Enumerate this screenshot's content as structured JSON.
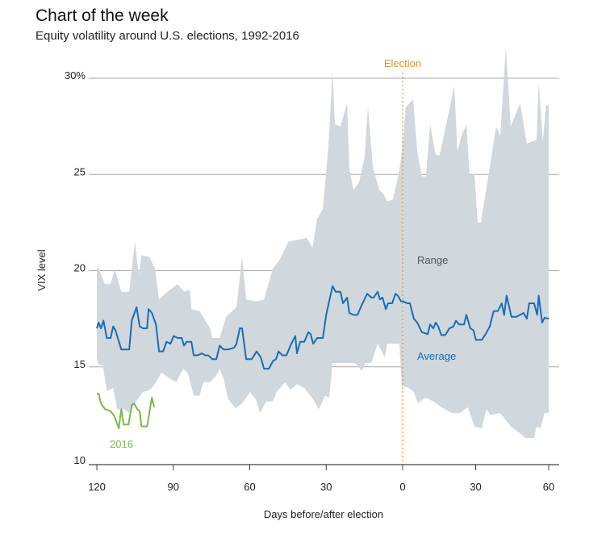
{
  "chart_data": {
    "type": "area",
    "title": "Chart of the week",
    "subtitle": "Equity volatility around U.S. elections, 1992-2016",
    "xlabel": "Days before/after election",
    "ylabel": "VIX level",
    "xlim": [
      -120,
      60
    ],
    "ylim": [
      10,
      30
    ],
    "grid": true,
    "x_ticks": [
      -120,
      -90,
      -60,
      -30,
      0,
      30,
      60
    ],
    "x_tick_labels": [
      "120",
      "90",
      "60",
      "30",
      "0",
      "30",
      "60"
    ],
    "y_ticks": [
      30,
      25,
      20,
      15,
      10
    ],
    "y_tick_labels": [
      "30%",
      "25",
      "20",
      "15",
      "10"
    ],
    "annotations": {
      "election": "Election",
      "range": "Range",
      "average": "Average",
      "y2016": "2016"
    },
    "colors": {
      "range": "#d0d7dd",
      "average": "#1a6db4",
      "y2016": "#7cb84a",
      "election": "#e8922c",
      "grid": "#aaaaaa"
    },
    "series": [
      {
        "name": "Range upper",
        "points": [
          [
            -120,
            20.2
          ],
          [
            -119.3,
            20.1
          ],
          [
            -116.8,
            19.3
          ],
          [
            -114.6,
            19.3
          ],
          [
            -113,
            20.1
          ],
          [
            -110.4,
            18.9
          ],
          [
            -107.3,
            18.9
          ],
          [
            -105.1,
            21.5
          ],
          [
            -103.5,
            19.8
          ],
          [
            -102.5,
            20.8
          ],
          [
            -99.4,
            20.7
          ],
          [
            -97.2,
            20.1
          ],
          [
            -95.6,
            18.5
          ],
          [
            -92.4,
            18.9
          ],
          [
            -88.3,
            19.3
          ],
          [
            -85.8,
            18.9
          ],
          [
            -83.5,
            19.0
          ],
          [
            -82.9,
            18.0
          ],
          [
            -79.7,
            17.9
          ],
          [
            -75.6,
            17.0
          ],
          [
            -74.7,
            16.5
          ],
          [
            -71.8,
            16.5
          ],
          [
            -69.3,
            17.6
          ],
          [
            -65.2,
            18.1
          ],
          [
            -63,
            20.7
          ],
          [
            -61.4,
            18.5
          ],
          [
            -57.6,
            18.4
          ],
          [
            -54.4,
            18.5
          ],
          [
            -52.5,
            19.4
          ],
          [
            -50.9,
            20.1
          ],
          [
            -48.1,
            20.6
          ],
          [
            -44.9,
            21.5
          ],
          [
            -37.7,
            21.7
          ],
          [
            -35.4,
            21.2
          ],
          [
            -33.5,
            22.7
          ],
          [
            -31.3,
            23.2
          ],
          [
            -29.1,
            26.5
          ],
          [
            -27.5,
            30.4
          ],
          [
            -26.6,
            27.6
          ],
          [
            -24.4,
            27.5
          ],
          [
            -21.8,
            28.7
          ],
          [
            -20.9,
            25.3
          ],
          [
            -19.3,
            24.2
          ],
          [
            -17.1,
            24.6
          ],
          [
            -14.9,
            25.9
          ],
          [
            -13.6,
            28.5
          ],
          [
            -11.7,
            25.4
          ],
          [
            -9.2,
            24.2
          ],
          [
            -7.6,
            24.0
          ],
          [
            -6,
            23.6
          ],
          [
            -3.8,
            23.7
          ],
          [
            -1.3,
            25.2
          ],
          [
            0,
            26.5
          ],
          [
            1.3,
            28.5
          ],
          [
            4.3,
            28.9
          ],
          [
            6,
            26.2
          ],
          [
            7.9,
            24.9
          ],
          [
            9.6,
            24.9
          ],
          [
            11.3,
            27.6
          ],
          [
            13.6,
            26.0
          ],
          [
            15.2,
            26.0
          ],
          [
            17.9,
            27.6
          ],
          [
            21.2,
            29.6
          ],
          [
            22.5,
            26.2
          ],
          [
            24.2,
            27.0
          ],
          [
            26.2,
            27.6
          ],
          [
            27.5,
            25.0
          ],
          [
            29.5,
            25.0
          ],
          [
            30.8,
            22.5
          ],
          [
            32.1,
            22.5
          ],
          [
            36.1,
            25.6
          ],
          [
            38.4,
            27.5
          ],
          [
            40.1,
            27.0
          ],
          [
            42.4,
            31.6
          ],
          [
            44.4,
            27.5
          ],
          [
            48.3,
            28.7
          ],
          [
            51,
            26.6
          ],
          [
            55,
            26.8
          ],
          [
            55.9,
            29.8
          ],
          [
            57.6,
            26.7
          ],
          [
            58.9,
            28.6
          ],
          [
            60,
            28.6
          ]
        ]
      },
      {
        "name": "Range lower",
        "points": [
          [
            -120,
            15.5
          ],
          [
            -119.3,
            15.1
          ],
          [
            -117.7,
            15.1
          ],
          [
            -116.1,
            13.75
          ],
          [
            -113.6,
            13.9
          ],
          [
            -112,
            12.8
          ],
          [
            -109.5,
            12.8
          ],
          [
            -107.3,
            12.6
          ],
          [
            -105.1,
            13.1
          ],
          [
            -103.5,
            13.4
          ],
          [
            -101.9,
            13.7
          ],
          [
            -100,
            13.75
          ],
          [
            -98.4,
            13.9
          ],
          [
            -96.8,
            14.2
          ],
          [
            -94.6,
            14.7
          ],
          [
            -91.5,
            14.4
          ],
          [
            -88.9,
            14.2
          ],
          [
            -86.1,
            14.9
          ],
          [
            -84.2,
            14.65
          ],
          [
            -82,
            13.5
          ],
          [
            -79.7,
            13.5
          ],
          [
            -78.2,
            14.2
          ],
          [
            -75.6,
            14.2
          ],
          [
            -73.4,
            14.5
          ],
          [
            -71.8,
            14.9
          ],
          [
            -70.3,
            14.4
          ],
          [
            -68.4,
            13.3
          ],
          [
            -65.5,
            12.85
          ],
          [
            -63,
            13.1
          ],
          [
            -59.8,
            13.7
          ],
          [
            -57.6,
            13.3
          ],
          [
            -56,
            12.6
          ],
          [
            -53.5,
            13.2
          ],
          [
            -50.9,
            13.2
          ],
          [
            -49.4,
            13.7
          ],
          [
            -46.2,
            14.2
          ],
          [
            -44,
            13.8
          ],
          [
            -41.5,
            14.1
          ],
          [
            -38.6,
            13.9
          ],
          [
            -35.1,
            13.3
          ],
          [
            -32.9,
            12.8
          ],
          [
            -30.4,
            13.5
          ],
          [
            -28.8,
            13.4
          ],
          [
            -27.5,
            15.2
          ],
          [
            -24,
            15.2
          ],
          [
            -18.7,
            15.2
          ],
          [
            -16.1,
            14.8
          ],
          [
            -14.6,
            15.2
          ],
          [
            -12.3,
            15.2
          ],
          [
            -9.8,
            16.2
          ],
          [
            -7,
            15.5
          ],
          [
            -6,
            16.2
          ],
          [
            -1.3,
            16.2
          ],
          [
            -0.3,
            14.0
          ],
          [
            2.6,
            13.9
          ],
          [
            4.6,
            13.7
          ],
          [
            6.3,
            13.1
          ],
          [
            9.3,
            13.4
          ],
          [
            12.6,
            13.2
          ],
          [
            15.9,
            12.9
          ],
          [
            20.2,
            12.6
          ],
          [
            23.5,
            12.6
          ],
          [
            26.8,
            12.9
          ],
          [
            29.5,
            11.9
          ],
          [
            32.5,
            11.8
          ],
          [
            34.4,
            12.8
          ],
          [
            36.1,
            12.5
          ],
          [
            40.1,
            12.6
          ],
          [
            44.4,
            11.9
          ],
          [
            47.7,
            11.6
          ],
          [
            50.7,
            11.3
          ],
          [
            54,
            11.3
          ],
          [
            55,
            11.9
          ],
          [
            56.6,
            11.8
          ],
          [
            58.3,
            12.6
          ],
          [
            60,
            12.6
          ]
        ]
      },
      {
        "name": "Average",
        "points": [
          [
            -120,
            17.0
          ],
          [
            -119.3,
            17.3
          ],
          [
            -118.4,
            17.0
          ],
          [
            -117.4,
            17.4
          ],
          [
            -116.1,
            16.5
          ],
          [
            -114.6,
            16.5
          ],
          [
            -113.6,
            17.1
          ],
          [
            -112.7,
            16.9
          ],
          [
            -110.4,
            15.9
          ],
          [
            -107.3,
            15.9
          ],
          [
            -106.3,
            17.4
          ],
          [
            -104.4,
            18.1
          ],
          [
            -103.2,
            17.1
          ],
          [
            -101.9,
            17.0
          ],
          [
            -100.3,
            17.0
          ],
          [
            -99.7,
            18.0
          ],
          [
            -98.4,
            17.8
          ],
          [
            -96.8,
            17.2
          ],
          [
            -95.6,
            15.8
          ],
          [
            -94,
            15.8
          ],
          [
            -92.7,
            16.3
          ],
          [
            -91.1,
            16.2
          ],
          [
            -89.9,
            16.6
          ],
          [
            -88.3,
            16.5
          ],
          [
            -86.7,
            16.5
          ],
          [
            -85.8,
            16.1
          ],
          [
            -84.8,
            16.3
          ],
          [
            -82.9,
            16.3
          ],
          [
            -82,
            15.6
          ],
          [
            -80.4,
            15.6
          ],
          [
            -78.8,
            15.7
          ],
          [
            -77.5,
            15.6
          ],
          [
            -76.3,
            15.6
          ],
          [
            -74.7,
            15.4
          ],
          [
            -73.1,
            15.4
          ],
          [
            -71.8,
            16.1
          ],
          [
            -70.3,
            15.9
          ],
          [
            -68.4,
            15.9
          ],
          [
            -66.1,
            16.0
          ],
          [
            -65.2,
            16.2
          ],
          [
            -63.9,
            17.0
          ],
          [
            -63,
            17.0
          ],
          [
            -61.4,
            15.4
          ],
          [
            -59.2,
            15.4
          ],
          [
            -57.3,
            15.8
          ],
          [
            -55.7,
            15.5
          ],
          [
            -54.4,
            14.9
          ],
          [
            -52.5,
            14.9
          ],
          [
            -50.9,
            15.3
          ],
          [
            -49.7,
            15.4
          ],
          [
            -48.7,
            15.8
          ],
          [
            -47.2,
            15.6
          ],
          [
            -45.6,
            15.6
          ],
          [
            -43.7,
            16.2
          ],
          [
            -42.1,
            16.6
          ],
          [
            -41.5,
            15.7
          ],
          [
            -40.2,
            16.3
          ],
          [
            -38.6,
            16.3
          ],
          [
            -37,
            16.8
          ],
          [
            -36.1,
            16.7
          ],
          [
            -35.1,
            16.2
          ],
          [
            -33.5,
            16.5
          ],
          [
            -31.3,
            16.5
          ],
          [
            -30,
            17.7
          ],
          [
            -27.5,
            19.2
          ],
          [
            -26.3,
            18.9
          ],
          [
            -24.4,
            18.9
          ],
          [
            -23.4,
            18.3
          ],
          [
            -21.8,
            18.6
          ],
          [
            -20.9,
            17.8
          ],
          [
            -19.3,
            17.7
          ],
          [
            -17.7,
            17.7
          ],
          [
            -16.1,
            18.2
          ],
          [
            -13.9,
            18.8
          ],
          [
            -12.3,
            18.6
          ],
          [
            -11.4,
            18.6
          ],
          [
            -9.8,
            18.9
          ],
          [
            -8.9,
            18.5
          ],
          [
            -7.9,
            18.6
          ],
          [
            -6.6,
            18.0
          ],
          [
            -5.7,
            18.3
          ],
          [
            -4.1,
            18.3
          ],
          [
            -2.8,
            18.8
          ],
          [
            -1.9,
            18.7
          ],
          [
            -0.6,
            18.4
          ],
          [
            0.3,
            18.4
          ],
          [
            2,
            18.3
          ],
          [
            3,
            18.3
          ],
          [
            4.6,
            17.5
          ],
          [
            6,
            17.3
          ],
          [
            7.9,
            16.8
          ],
          [
            10.3,
            16.7
          ],
          [
            11.3,
            17.2
          ],
          [
            12.6,
            17.0
          ],
          [
            13.6,
            17.3
          ],
          [
            14.6,
            17.1
          ],
          [
            15.9,
            16.65
          ],
          [
            17.5,
            16.65
          ],
          [
            19.2,
            17.0
          ],
          [
            20.9,
            17.1
          ],
          [
            21.9,
            17.4
          ],
          [
            23.2,
            17.2
          ],
          [
            25.2,
            17.2
          ],
          [
            26.2,
            17.7
          ],
          [
            27.8,
            17.0
          ],
          [
            29.1,
            16.9
          ],
          [
            30.1,
            16.4
          ],
          [
            32.5,
            16.4
          ],
          [
            34.1,
            16.7
          ],
          [
            35.8,
            17.1
          ],
          [
            37.4,
            17.9
          ],
          [
            39.1,
            17.9
          ],
          [
            40.7,
            18.3
          ],
          [
            41.7,
            17.7
          ],
          [
            42.7,
            18.7
          ],
          [
            44.7,
            17.6
          ],
          [
            46.7,
            17.6
          ],
          [
            49.7,
            17.8
          ],
          [
            51,
            17.5
          ],
          [
            52,
            18.3
          ],
          [
            54,
            18.3
          ],
          [
            55.3,
            17.7
          ],
          [
            55.9,
            18.7
          ],
          [
            57.3,
            17.3
          ],
          [
            58.3,
            17.55
          ],
          [
            60,
            17.5
          ]
        ]
      },
      {
        "name": "2016",
        "points": [
          [
            -120,
            13.6
          ],
          [
            -119.3,
            13.6
          ],
          [
            -118.4,
            13.1
          ],
          [
            -116.8,
            12.8
          ],
          [
            -114.6,
            12.7
          ],
          [
            -113,
            12.4
          ],
          [
            -111.4,
            11.8
          ],
          [
            -110.4,
            12.8
          ],
          [
            -109.5,
            12.0
          ],
          [
            -107.6,
            12.0
          ],
          [
            -106.3,
            13.0
          ],
          [
            -105.4,
            13.1
          ],
          [
            -104.1,
            12.8
          ],
          [
            -103.2,
            12.7
          ],
          [
            -102.5,
            11.9
          ],
          [
            -100.3,
            11.9
          ],
          [
            -98.4,
            13.4
          ],
          [
            -97.5,
            12.9
          ]
        ]
      }
    ]
  }
}
